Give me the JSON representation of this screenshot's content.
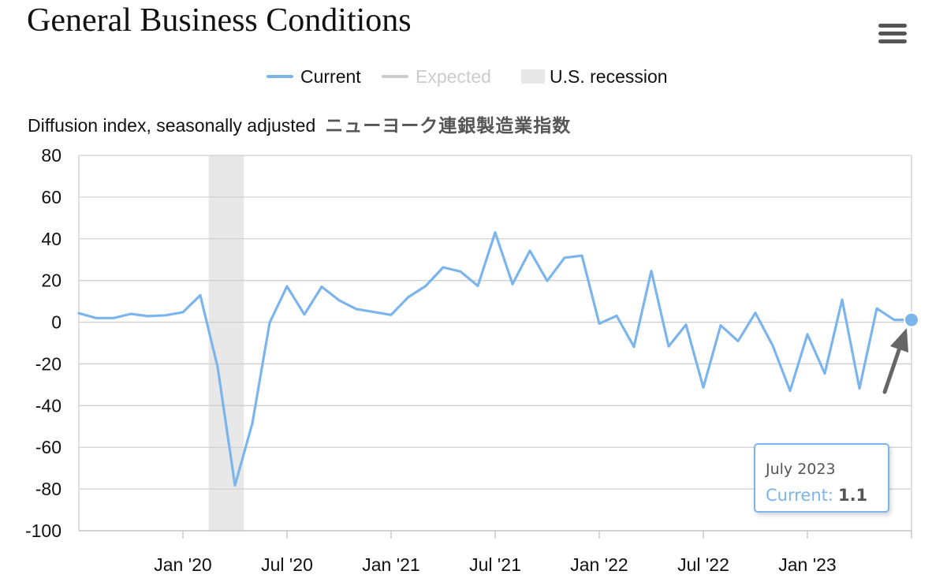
{
  "page": {
    "title": "General Business Conditions",
    "subtitle": "Diffusion index, seasonally adjusted",
    "annotation_jp": "ニューヨーク連銀製造業指数"
  },
  "legend": {
    "current": "Current",
    "expected": "Expected",
    "recession": "U.S. recession"
  },
  "tooltip": {
    "date": "July 2023",
    "series": "Current:",
    "value": "1.1"
  },
  "colors": {
    "current": "#7cb5ec",
    "expected_legend": "#cccccc",
    "recession": "#e8e8e8",
    "grid": "#d0d0d0",
    "arrow": "#666666"
  },
  "icons": {
    "menu": "hamburger-menu-icon",
    "annotation": "arrow-icon"
  },
  "chart_data": {
    "type": "line",
    "ylim": [
      -100,
      80
    ],
    "yticks": [
      80,
      60,
      40,
      20,
      0,
      -20,
      -40,
      -60,
      -80,
      -100
    ],
    "xlim": [
      "2019-07",
      "2023-07"
    ],
    "xticks": [
      {
        "date": "2020-01",
        "label": "Jan '20"
      },
      {
        "date": "2020-07",
        "label": "Jul '20"
      },
      {
        "date": "2021-01",
        "label": "Jan '21"
      },
      {
        "date": "2021-07",
        "label": "Jul '21"
      },
      {
        "date": "2022-01",
        "label": "Jan '22"
      },
      {
        "date": "2022-07",
        "label": "Jul '22"
      },
      {
        "date": "2023-01",
        "label": "Jan '23"
      }
    ],
    "grid": true,
    "recessions": [
      {
        "start": "2020-03",
        "end": "2020-04"
      }
    ],
    "series": [
      {
        "name": "Current",
        "x": [
          "2019-07",
          "2019-08",
          "2019-09",
          "2019-10",
          "2019-11",
          "2019-12",
          "2020-01",
          "2020-02",
          "2020-03",
          "2020-04",
          "2020-05",
          "2020-06",
          "2020-07",
          "2020-08",
          "2020-09",
          "2020-10",
          "2020-11",
          "2020-12",
          "2021-01",
          "2021-02",
          "2021-03",
          "2021-04",
          "2021-05",
          "2021-06",
          "2021-07",
          "2021-08",
          "2021-09",
          "2021-10",
          "2021-11",
          "2021-12",
          "2022-01",
          "2022-02",
          "2022-03",
          "2022-04",
          "2022-05",
          "2022-06",
          "2022-07",
          "2022-08",
          "2022-09",
          "2022-10",
          "2022-11",
          "2022-12",
          "2023-01",
          "2023-02",
          "2023-03",
          "2023-04",
          "2023-05",
          "2023-06",
          "2023-07"
        ],
        "values": [
          4.3,
          2.0,
          2.0,
          4.0,
          2.9,
          3.3,
          4.8,
          12.9,
          -21.5,
          -78.2,
          -48.5,
          -0.2,
          17.2,
          3.7,
          17.0,
          10.5,
          6.3,
          4.9,
          3.5,
          12.1,
          17.4,
          26.3,
          24.3,
          17.4,
          43.0,
          18.3,
          34.3,
          19.8,
          30.9,
          31.9,
          -0.7,
          3.1,
          -11.8,
          24.6,
          -11.6,
          -1.2,
          -31.3,
          -1.5,
          -9.1,
          4.5,
          -11.2,
          -32.9,
          -5.8,
          -24.6,
          10.8,
          -31.8,
          6.6,
          1.1,
          1.1
        ]
      }
    ]
  }
}
